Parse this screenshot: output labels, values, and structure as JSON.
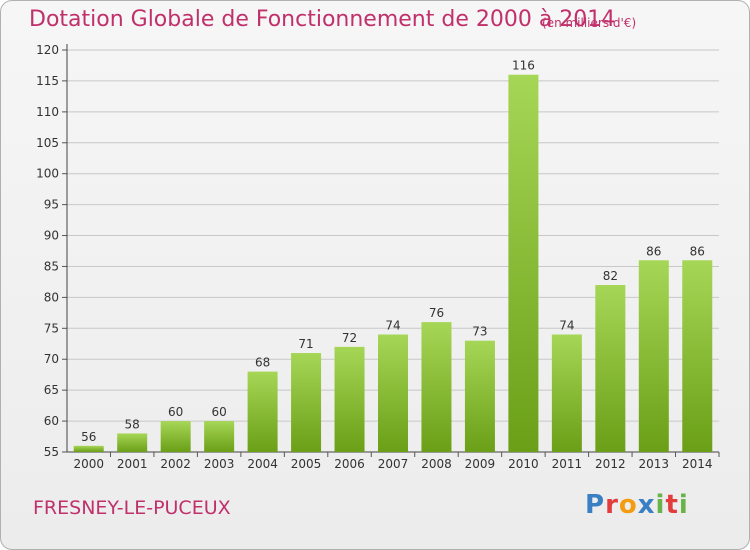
{
  "header": {
    "title": "Dotation Globale de Fonctionnement de 2000 à 2014",
    "subtitle": "(en milliers d'€)"
  },
  "footer": {
    "commune": "FRESNEY-LE-PUCEUX",
    "logo": [
      "P",
      "r",
      "o",
      "x",
      "i",
      "t",
      "i"
    ]
  },
  "colors": {
    "title": "#c0306a",
    "bar_light": "#a6d656",
    "bar_dark": "#6a9f17",
    "grid": "#c8c8c8",
    "logo": [
      "#3a7fc4",
      "#e23c3c",
      "#f39c12",
      "#3a7fc4",
      "#6ab24a",
      "#e23c3c",
      "#6ab24a"
    ]
  },
  "chart_data": {
    "type": "bar",
    "categories": [
      "2000",
      "2001",
      "2002",
      "2003",
      "2004",
      "2005",
      "2006",
      "2007",
      "2008",
      "2009",
      "2010",
      "2011",
      "2012",
      "2013",
      "2014"
    ],
    "values": [
      56,
      58,
      60,
      60,
      68,
      71,
      72,
      74,
      76,
      73,
      116,
      74,
      82,
      86,
      86
    ],
    "title": "Dotation Globale de Fonctionnement de 2000 à 2014",
    "subtitle": "(en milliers d'€)",
    "ylim": [
      55,
      120
    ],
    "yticks": [
      55,
      60,
      65,
      70,
      75,
      80,
      85,
      90,
      95,
      100,
      105,
      110,
      115,
      120
    ],
    "grid": true,
    "data_labels": true
  }
}
